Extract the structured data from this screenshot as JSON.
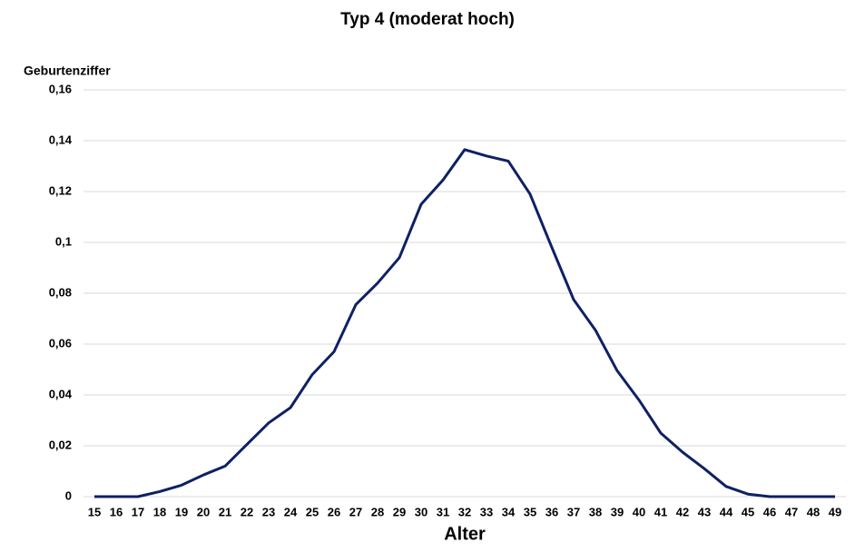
{
  "chart_data": {
    "type": "line",
    "title": "Typ 4 (moderat hoch)",
    "y_label": "Geburtenziffer",
    "x_label": "Alter",
    "categories": [
      "15",
      "16",
      "17",
      "18",
      "19",
      "20",
      "21",
      "22",
      "23",
      "24",
      "25",
      "26",
      "27",
      "28",
      "29",
      "30",
      "31",
      "32",
      "33",
      "34",
      "35",
      "36",
      "37",
      "38",
      "39",
      "40",
      "41",
      "42",
      "43",
      "44",
      "45",
      "46",
      "47",
      "48",
      "49"
    ],
    "series": [
      {
        "name": "Typ 4",
        "color": "#0e2163",
        "values": [
          0,
          0,
          0,
          0.002,
          0.0045,
          0.0085,
          0.012,
          0.0205,
          0.029,
          0.035,
          0.048,
          0.057,
          0.0755,
          0.084,
          0.094,
          0.115,
          0.1245,
          0.1365,
          0.134,
          0.132,
          0.119,
          0.098,
          0.0775,
          0.0655,
          0.0495,
          0.038,
          0.025,
          0.0175,
          0.011,
          0.004,
          0.001,
          0,
          0,
          0,
          0
        ]
      }
    ],
    "ylim": [
      0,
      0.16
    ],
    "yticks": [
      0,
      {
        "value": 0.02,
        "label": "0,02"
      },
      {
        "value": 0.04,
        "label": "0,04"
      },
      {
        "value": 0.06,
        "label": "0,06"
      },
      {
        "value": 0.08,
        "label": "0,08"
      },
      {
        "value": 0.1,
        "label": "0,1"
      },
      {
        "value": 0.12,
        "label": "0,12"
      },
      {
        "value": 0.14,
        "label": "0,14"
      },
      {
        "value": 0.16,
        "label": "0,16"
      }
    ],
    "grid": true
  }
}
